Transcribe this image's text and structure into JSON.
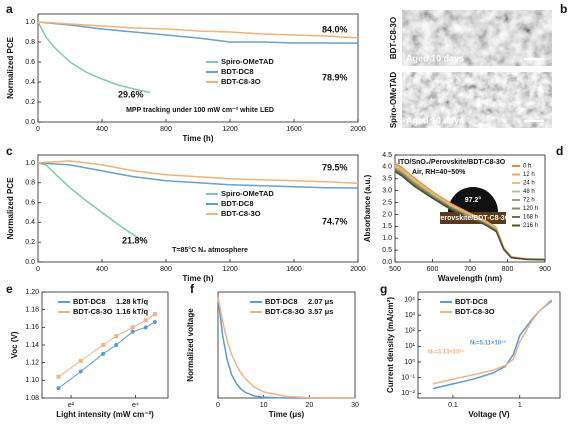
{
  "chart_data": [
    {
      "type": "line",
      "panel_label": "a",
      "xlabel": "Time (h)",
      "ylabel": "Normalized PCE",
      "xlim": [
        0,
        2000
      ],
      "xticks": [
        0,
        400,
        800,
        1200,
        1600,
        2000
      ],
      "ylim": [
        0,
        1.08
      ],
      "yticks": [
        {
          "value": 0,
          "label": "0.0"
        },
        0.2,
        0.4,
        0.6,
        0.8,
        {
          "value": 1,
          "label": "1.0"
        }
      ],
      "series": [
        {
          "name": "Spiro-OMeTAD",
          "color": "#7fcba4",
          "x": [
            0,
            50,
            100,
            200,
            300,
            400,
            500,
            600,
            700
          ],
          "values": [
            1.0,
            0.85,
            0.75,
            0.6,
            0.5,
            0.43,
            0.37,
            0.33,
            0.296
          ]
        },
        {
          "name": "BDT-DC8",
          "color": "#6a9fc9",
          "x": [
            0,
            200,
            400,
            600,
            800,
            1000,
            1200,
            1400,
            1600,
            1800,
            2000
          ],
          "values": [
            1.0,
            0.97,
            0.93,
            0.9,
            0.87,
            0.84,
            0.8,
            0.8,
            0.79,
            0.79,
            0.789
          ]
        },
        {
          "name": "BDT-C8-3O",
          "color": "#f0b27a",
          "x": [
            0,
            200,
            400,
            600,
            800,
            1000,
            1200,
            1400,
            1600,
            1800,
            2000
          ],
          "values": [
            1.0,
            0.98,
            0.96,
            0.94,
            0.93,
            0.91,
            0.9,
            0.88,
            0.87,
            0.86,
            0.84
          ]
        }
      ],
      "annotations": [
        "84.0%",
        "78.9%",
        "29.6%",
        "MPP tracking under 100 mW cm⁻² white LED"
      ]
    },
    {
      "type": "line",
      "panel_label": "c",
      "xlabel": "Time (h)",
      "ylabel": "Normalized PCE",
      "xlim": [
        0,
        2000
      ],
      "xticks": [
        0,
        400,
        800,
        1200,
        1600,
        2000
      ],
      "ylim": [
        0,
        1.08
      ],
      "yticks": [
        {
          "value": 0,
          "label": "0.0"
        },
        0.2,
        0.4,
        0.6,
        0.8,
        {
          "value": 1,
          "label": "1.0"
        }
      ],
      "series": [
        {
          "name": "Spiro-OMeTAD",
          "color": "#7fcba4",
          "x": [
            0,
            50,
            100,
            200,
            300,
            400,
            500,
            600,
            650
          ],
          "values": [
            1.0,
            0.98,
            0.9,
            0.75,
            0.62,
            0.5,
            0.38,
            0.27,
            0.218
          ]
        },
        {
          "name": "BDT-DC8",
          "color": "#6a9fc9",
          "x": [
            0,
            200,
            400,
            600,
            800,
            1000,
            1200,
            1400,
            1600,
            1800,
            2000
          ],
          "values": [
            1.0,
            0.98,
            0.92,
            0.86,
            0.82,
            0.8,
            0.78,
            0.77,
            0.76,
            0.75,
            0.747
          ]
        },
        {
          "name": "BDT-C8-3O",
          "color": "#f0b27a",
          "x": [
            0,
            200,
            400,
            600,
            800,
            1000,
            1200,
            1400,
            1600,
            1800,
            2000
          ],
          "values": [
            1.0,
            1.02,
            0.98,
            0.92,
            0.88,
            0.86,
            0.84,
            0.83,
            0.82,
            0.81,
            0.795
          ]
        }
      ],
      "annotations": [
        "79.5%",
        "74.7%",
        "21.8%",
        "T=85°C N₂ atmosphere"
      ]
    },
    {
      "type": "line",
      "panel_label": "d",
      "xlabel": "Wavelength (nm)",
      "ylabel": "Absorbance (a.u.)",
      "xlim": [
        500,
        900
      ],
      "xticks": [
        500,
        600,
        700,
        800,
        900
      ],
      "ylim": [
        0,
        4.5
      ],
      "yticks": [
        {
          "value": 0,
          "label": "0.0"
        },
        0.5,
        {
          "value": 1,
          "label": "1.0"
        },
        1.5,
        {
          "value": 2,
          "label": "2.0"
        },
        2.5,
        {
          "value": 3,
          "label": "3.0"
        },
        3.5,
        {
          "value": 4,
          "label": "4.0"
        },
        4.5
      ],
      "x": [
        500,
        520,
        550,
        600,
        650,
        700,
        740,
        770,
        790,
        810,
        850,
        900
      ],
      "series": [
        {
          "name": "0 h",
          "color": "#f08a2c",
          "values": [
            4.15,
            3.95,
            3.55,
            2.95,
            2.45,
            2.05,
            1.75,
            1.45,
            0.6,
            0.22,
            0.13,
            0.1
          ]
        },
        {
          "name": "12 h",
          "color": "#f5a55a",
          "values": [
            4.1,
            3.9,
            3.5,
            2.9,
            2.4,
            2.0,
            1.72,
            1.42,
            0.58,
            0.21,
            0.13,
            0.1
          ]
        },
        {
          "name": "24 h",
          "color": "#e8c07a",
          "values": [
            4.05,
            3.85,
            3.45,
            2.88,
            2.38,
            1.98,
            1.7,
            1.4,
            0.57,
            0.2,
            0.12,
            0.1
          ]
        },
        {
          "name": "48 h",
          "color": "#c9b98a",
          "values": [
            4.0,
            3.8,
            3.4,
            2.85,
            2.35,
            1.95,
            1.67,
            1.38,
            0.56,
            0.2,
            0.12,
            0.1
          ]
        },
        {
          "name": "72 h",
          "color": "#a0a070",
          "values": [
            3.95,
            3.75,
            3.35,
            2.8,
            2.3,
            1.92,
            1.64,
            1.35,
            0.55,
            0.19,
            0.12,
            0.1
          ]
        },
        {
          "name": "120 h",
          "color": "#8c8c5a",
          "values": [
            3.9,
            3.7,
            3.3,
            2.75,
            2.27,
            1.9,
            1.62,
            1.33,
            0.54,
            0.19,
            0.12,
            0.1
          ]
        },
        {
          "name": "168 h",
          "color": "#707050",
          "values": [
            3.85,
            3.65,
            3.25,
            2.72,
            2.24,
            1.87,
            1.6,
            1.3,
            0.53,
            0.18,
            0.11,
            0.1
          ]
        },
        {
          "name": "216 h",
          "color": "#505030",
          "values": [
            3.8,
            3.6,
            3.2,
            2.68,
            2.2,
            1.84,
            1.57,
            1.28,
            0.52,
            0.18,
            0.11,
            0.1
          ]
        }
      ],
      "annotations": [
        "ITO/SnO₂/Perovskite/BDT-C8-3O",
        "Air, RH=40~50%",
        "97.2°",
        "Perovskite/BDT-C8-3O"
      ]
    },
    {
      "type": "scatter",
      "panel_label": "e",
      "xlabel": "Light intensity (mW cm⁻²)",
      "ylabel": "Voc (V)",
      "xscale": "log",
      "xlim": [
        3,
        150
      ],
      "xticks": [
        {
          "value": 7.389,
          "label": "e²"
        },
        {
          "value": 54.598,
          "label": "e⁴"
        }
      ],
      "ylim": [
        1.08,
        1.2
      ],
      "yticks": [
        1.08,
        {
          "value": 1.1,
          "label": "1.10"
        },
        1.12,
        1.14,
        1.16,
        1.18,
        {
          "value": 1.2,
          "label": "1.20"
        }
      ],
      "x": [
        5,
        10,
        20,
        30,
        50,
        75,
        100
      ],
      "series": [
        {
          "name": "BDT-DC8",
          "legend_note": "1.28 kT/q",
          "color": "#5b9bd5",
          "values": [
            1.091,
            1.11,
            1.13,
            1.14,
            1.155,
            1.16,
            1.166
          ]
        },
        {
          "name": "BDT-C8-3O",
          "legend_note": "1.16 kT/q",
          "color": "#f4b183",
          "values": [
            1.104,
            1.122,
            1.14,
            1.15,
            1.16,
            1.168,
            1.175
          ]
        }
      ]
    },
    {
      "type": "line",
      "panel_label": "f",
      "xlabel": "Time (μs)",
      "ylabel": "Normalized voltage",
      "xlim": [
        0,
        30
      ],
      "xticks": [
        0,
        10,
        20,
        30
      ],
      "ylim": [
        0,
        1.05
      ],
      "x": [
        0,
        1,
        2,
        3,
        4,
        5,
        6,
        8,
        10,
        15,
        20,
        30
      ],
      "series": [
        {
          "name": "BDT-DC8",
          "legend_note": "2.07 μs",
          "color": "#5b9bd5",
          "values": [
            1,
            0.62,
            0.38,
            0.23,
            0.145,
            0.09,
            0.055,
            0.02,
            0.008,
            0,
            0,
            0
          ]
        },
        {
          "name": "BDT-C8-3O",
          "legend_note": "3.57 μs",
          "color": "#f4b183",
          "values": [
            1,
            0.76,
            0.57,
            0.43,
            0.33,
            0.25,
            0.19,
            0.106,
            0.06,
            0.015,
            0.004,
            0
          ]
        }
      ]
    },
    {
      "type": "line",
      "panel_label": "g",
      "xlabel": "Voltage (V)",
      "ylabel": "Current density (mA/cm²)",
      "xscale": "log",
      "xlim": [
        0.03,
        4
      ],
      "xticks": [
        0.1,
        1
      ],
      "yscale": "log",
      "ylim": [
        0.005,
        30000
      ],
      "yticks": [
        {
          "value": 0.01,
          "label": "10⁻²"
        },
        {
          "value": 0.1,
          "label": "10⁻¹"
        },
        {
          "value": 1,
          "label": "10⁰"
        },
        {
          "value": 10,
          "label": "10¹"
        },
        {
          "value": 100,
          "label": "10²"
        },
        {
          "value": 1000,
          "label": "10³"
        },
        {
          "value": 10000,
          "label": "10⁴"
        }
      ],
      "x": [
        0.05,
        0.1,
        0.2,
        0.4,
        0.6,
        0.8,
        1,
        1.5,
        2,
        3
      ],
      "series": [
        {
          "name": "BDT-DC8",
          "color": "#5b9bd5",
          "values": [
            0.02,
            0.04,
            0.08,
            0.2,
            0.5,
            3,
            50,
            500,
            2000,
            8000
          ]
        },
        {
          "name": "BDT-C8-3O",
          "color": "#f4b183",
          "values": [
            0.04,
            0.08,
            0.15,
            0.3,
            0.6,
            1.5,
            20,
            400,
            2000,
            10000
          ]
        }
      ],
      "annotations": [
        "Nₜ=3.13×10¹⁵",
        "Nₜ=5.11×10¹⁴"
      ]
    }
  ],
  "sem_panel": {
    "panel_label": "b",
    "images": [
      {
        "sample": "BDT-C8-3O",
        "caption": "Aged 10 days"
      },
      {
        "sample": "Spiro-OMeTAD",
        "caption": "Aged 10 days"
      }
    ]
  }
}
